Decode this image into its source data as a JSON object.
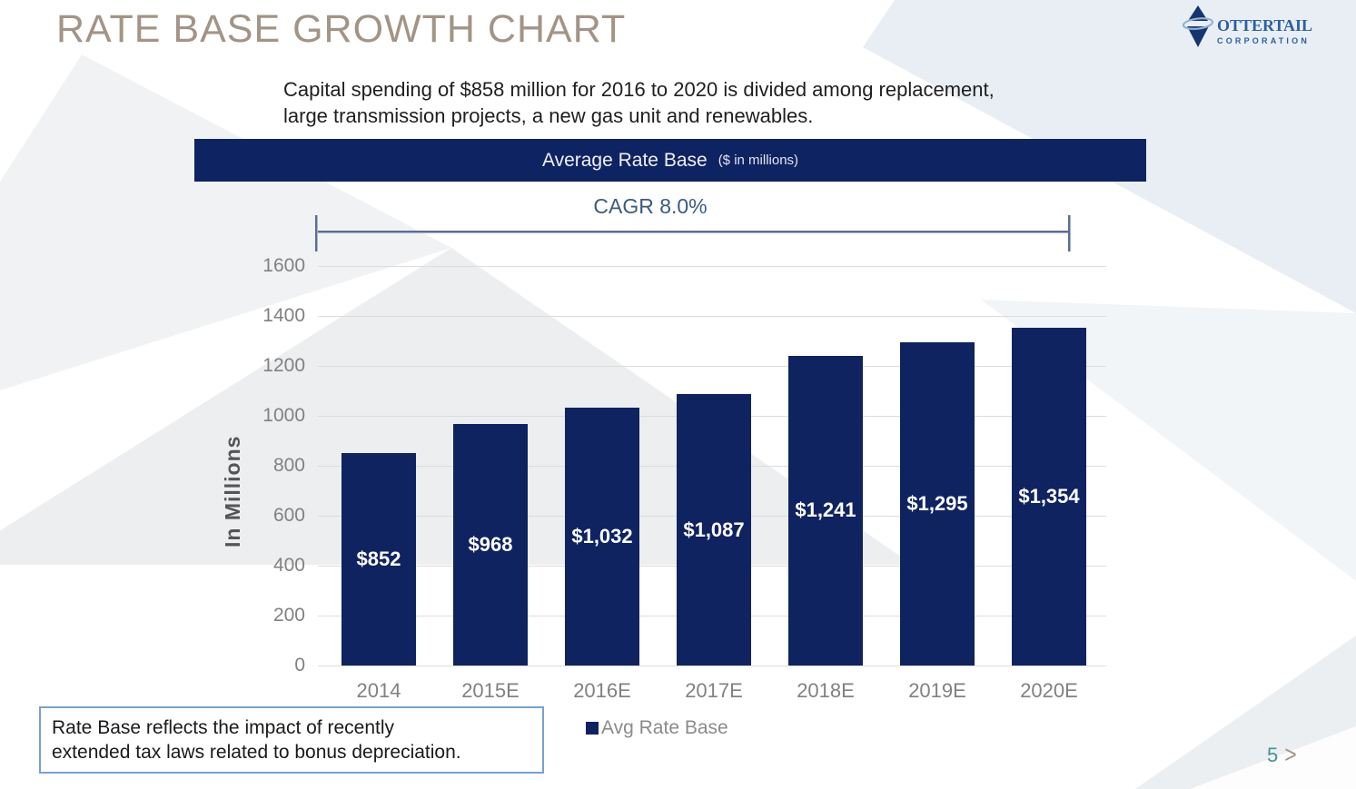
{
  "slide": {
    "title": "RATE BASE GROWTH CHART",
    "page_number": "5",
    "next_chevron": ">"
  },
  "logo": {
    "name": "OtterTail",
    "subline": "CORPORATION"
  },
  "subtitle": {
    "lines": [
      "Capital spending of $858 million for 2016 to 2020 is divided among replacement,",
      "large transmission projects, a new gas unit and renewables."
    ]
  },
  "banner": {
    "title": "Average Rate Base",
    "units": "($ in millions)"
  },
  "footnote": {
    "lines": [
      "Rate Base reflects the impact of recently",
      "extended tax laws related to bonus depreciation."
    ]
  },
  "chart_data": {
    "type": "bar",
    "title": "Average Rate Base ($ in millions)",
    "annotation": "CAGR 8.0%",
    "categories": [
      "2014",
      "2015E",
      "2016E",
      "2017E",
      "2018E",
      "2019E",
      "2020E"
    ],
    "values": [
      852,
      968,
      1032,
      1087,
      1241,
      1295,
      1354
    ],
    "value_labels": [
      "$852",
      "$968",
      "$1,032",
      "$1,087",
      "$1,241",
      "$1,295",
      "$1,354"
    ],
    "ylabel": "In Millions",
    "xlabel": "",
    "ylim": [
      0,
      1600
    ],
    "yticks": [
      0,
      200,
      400,
      600,
      800,
      1000,
      1200,
      1400,
      1600
    ],
    "grid": true,
    "legend": [
      "Avg Rate Base"
    ],
    "legend_position": "bottom",
    "bar_color": "#0f2361"
  },
  "colors": {
    "bar_navy": "#0f2361",
    "banner_navy": "#0e2361",
    "title_taupe": "#a29486",
    "logo_blue": "#2b5fa3",
    "cagr_blue": "#3b5a84",
    "gridline_gray": "#dcdcdc",
    "tick_gray": "#818181",
    "page_teal": "#3f9694",
    "footnote_border": "#79a0cf"
  }
}
